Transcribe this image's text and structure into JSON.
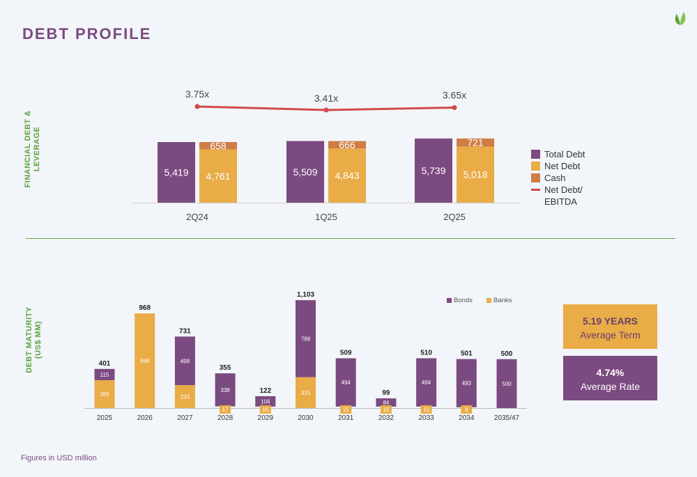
{
  "title": "DEBT PROFILE",
  "footnote": "Figures in USD million",
  "section_labels": {
    "leverage": "FINANCIAL DEBT &\nLEVERAGE",
    "maturity": "DEBT MATURITY\n(US$ MM)"
  },
  "colors": {
    "purple": "#7b4a80",
    "yellow": "#e9ac46",
    "orange": "#cf7d45",
    "red": "#d04a4a",
    "green": "#5aa33b"
  },
  "kpis": {
    "term": {
      "value": "5.19 YEARS",
      "label": "Average Term"
    },
    "rate": {
      "value": "4.74%",
      "label": "Average Rate"
    }
  },
  "chart_data": [
    {
      "type": "bar",
      "categories": [
        "2Q24",
        "1Q25",
        "2Q25"
      ],
      "series": [
        {
          "name": "Total Debt",
          "values": [
            5419,
            5509,
            5739
          ]
        },
        {
          "name": "Net Debt",
          "values": [
            4761,
            4843,
            5018
          ]
        },
        {
          "name": "Cash",
          "values": [
            658,
            666,
            721
          ]
        },
        {
          "name": "Net Debt/\nEBITDA",
          "values": [
            3.75,
            3.41,
            3.65
          ]
        }
      ],
      "value_labels": {
        "Total Debt": [
          "5,419",
          "5,509",
          "5,739"
        ],
        "Net Debt": [
          "4,761",
          "4,843",
          "5,018"
        ],
        "Cash": [
          "658",
          "666",
          "721"
        ],
        "Net Debt/\nEBITDA": [
          "3.75x",
          "3.41x",
          "3.65x"
        ]
      },
      "legend": "right"
    },
    {
      "type": "bar",
      "stacked": true,
      "categories": [
        "2025",
        "2026",
        "2027",
        "2028",
        "2029",
        "2030",
        "2031",
        "2032",
        "2033",
        "2034",
        "2035/47"
      ],
      "series": [
        {
          "name": "Banks",
          "values": [
            285,
            968,
            233,
            17,
            15,
            315,
            15,
            15,
            15,
            8,
            0
          ]
        },
        {
          "name": "Bonds",
          "values": [
            115,
            0,
            498,
            338,
            106,
            788,
            494,
            84,
            494,
            493,
            500
          ]
        }
      ],
      "segment_labels": {
        "Banks": [
          "285",
          "968",
          "233",
          "17",
          "15",
          "315",
          "15",
          "15",
          "15",
          "8",
          ""
        ],
        "Bonds": [
          "115",
          "",
          "498",
          "338",
          "106",
          "788",
          "494",
          "84",
          "494",
          "493",
          "500"
        ]
      },
      "totals": [
        "401",
        "968",
        "731",
        "355",
        "122",
        "1,103",
        "509",
        "99",
        "510",
        "501",
        "500"
      ],
      "legend": "top-right"
    }
  ]
}
